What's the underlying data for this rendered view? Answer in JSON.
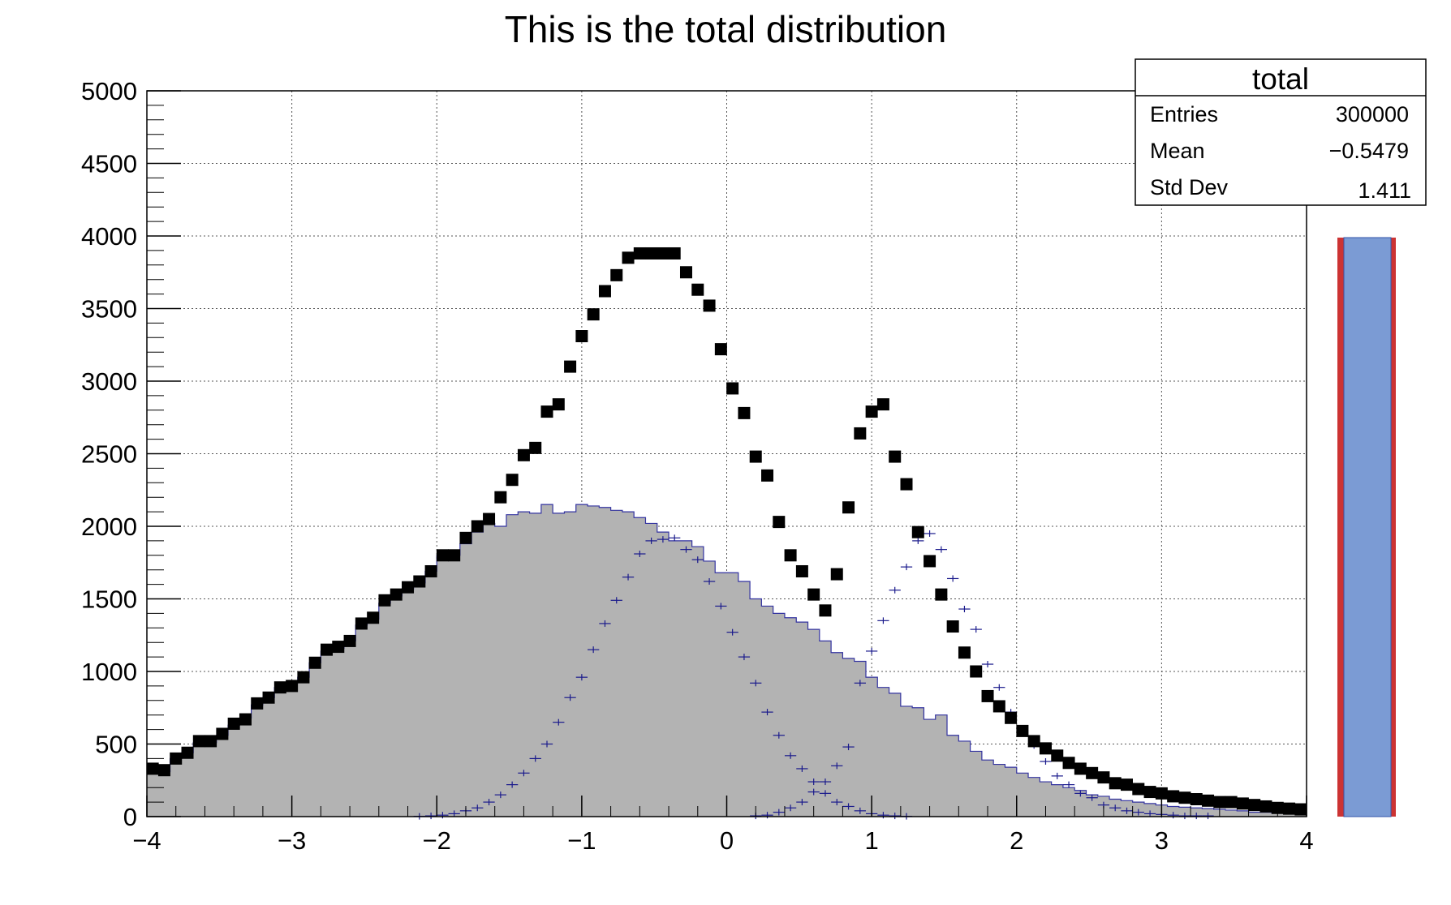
{
  "chart_data": {
    "type": "bar",
    "title": "This is the total distribution",
    "xlabel": "",
    "ylabel": "",
    "xlim": [
      -4,
      4
    ],
    "ylim": [
      0,
      5000
    ],
    "x_ticks": [
      "−4",
      "−3",
      "−2",
      "−1",
      "0",
      "1",
      "2",
      "3",
      "4"
    ],
    "y_ticks": [
      "0",
      "500",
      "1000",
      "1500",
      "2000",
      "2500",
      "3000",
      "3500",
      "4000",
      "4500",
      "5000"
    ],
    "grid": true,
    "bin_edges": [
      -4.0,
      -3.92,
      -3.84,
      -3.76,
      -3.68,
      -3.6,
      -3.52,
      -3.44,
      -3.36,
      -3.28,
      -3.2,
      -3.12,
      -3.04,
      -2.96,
      -2.88,
      -2.8,
      -2.72,
      -2.64,
      -2.56,
      -2.48,
      -2.4,
      -2.32,
      -2.24,
      -2.16,
      -2.08,
      -2.0,
      -1.92,
      -1.84,
      -1.76,
      -1.68,
      -1.6,
      -1.52,
      -1.44,
      -1.36,
      -1.28,
      -1.2,
      -1.12,
      -1.04,
      -0.96,
      -0.88,
      -0.8,
      -0.72,
      -0.64,
      -0.56,
      -0.48,
      -0.4,
      -0.32,
      -0.24,
      -0.16,
      -0.08,
      0.0,
      0.08,
      0.16,
      0.24,
      0.32,
      0.4,
      0.48,
      0.56,
      0.64,
      0.72,
      0.8,
      0.88,
      0.96,
      1.04,
      1.12,
      1.2,
      1.28,
      1.36,
      1.44,
      1.52,
      1.6,
      1.68,
      1.76,
      1.84,
      1.92,
      2.0,
      2.08,
      2.16,
      2.24,
      2.32,
      2.4,
      2.48,
      2.56,
      2.64,
      2.72,
      2.8,
      2.88,
      2.96,
      3.04,
      3.12,
      3.2,
      3.28,
      3.36,
      3.44,
      3.52,
      3.6,
      3.68,
      3.76,
      3.84,
      3.92,
      4.0
    ],
    "series": [
      {
        "style": "filled-histogram",
        "fill_color": "#b3b3b3",
        "line_color": "#3333a0",
        "values": [
          320,
          310,
          400,
          440,
          510,
          510,
          560,
          630,
          680,
          770,
          820,
          890,
          920,
          960,
          1060,
          1140,
          1160,
          1210,
          1320,
          1360,
          1470,
          1520,
          1570,
          1610,
          1690,
          1800,
          1800,
          1880,
          1960,
          2020,
          2000,
          2080,
          2100,
          2090,
          2150,
          2090,
          2100,
          2150,
          2140,
          2130,
          2110,
          2100,
          2060,
          2020,
          1960,
          1900,
          1900,
          1860,
          1760,
          1680,
          1680,
          1620,
          1500,
          1450,
          1400,
          1370,
          1340,
          1290,
          1210,
          1130,
          1090,
          1070,
          960,
          890,
          850,
          760,
          750,
          670,
          700,
          560,
          520,
          450,
          390,
          360,
          340,
          300,
          270,
          240,
          220,
          200,
          180,
          150,
          140,
          120,
          110,
          100,
          90,
          80,
          70,
          65,
          60,
          55,
          50,
          45,
          40,
          30,
          30,
          25,
          20,
          18
        ]
      },
      {
        "style": "markers",
        "marker": "filled-square",
        "color": "#000000",
        "values": [
          330,
          320,
          400,
          440,
          520,
          520,
          570,
          640,
          670,
          780,
          820,
          890,
          900,
          960,
          1060,
          1150,
          1170,
          1210,
          1330,
          1370,
          1490,
          1530,
          1580,
          1620,
          1690,
          1800,
          1800,
          1920,
          2000,
          2050,
          2200,
          2320,
          2490,
          2540,
          2790,
          2840,
          3100,
          3310,
          3460,
          3620,
          3730,
          3850,
          3880,
          3880,
          3880,
          3880,
          3750,
          3630,
          3520,
          3220,
          2950,
          2780,
          2480,
          2350,
          2030,
          1800,
          1690,
          1530,
          1420,
          1670,
          2130,
          2640,
          2790,
          2840,
          2480,
          2290,
          1960,
          1760,
          1530,
          1310,
          1130,
          1000,
          830,
          760,
          680,
          590,
          520,
          470,
          420,
          370,
          330,
          300,
          270,
          230,
          220,
          190,
          170,
          160,
          140,
          130,
          120,
          110,
          100,
          100,
          90,
          80,
          70,
          60,
          55,
          50
        ]
      },
      {
        "style": "error-crosses",
        "color": "#1a1a8c",
        "values": [
          0,
          0,
          0,
          0,
          0,
          0,
          0,
          0,
          0,
          0,
          0,
          0,
          0,
          0,
          0,
          0,
          0,
          0,
          0,
          0,
          0,
          0,
          0,
          2,
          5,
          10,
          20,
          40,
          60,
          100,
          150,
          220,
          300,
          400,
          500,
          650,
          820,
          960,
          1150,
          1330,
          1490,
          1650,
          1810,
          1900,
          1910,
          1920,
          1840,
          1770,
          1620,
          1450,
          1270,
          1100,
          920,
          720,
          560,
          420,
          330,
          240,
          160,
          100,
          70,
          40,
          20,
          10,
          5,
          2,
          0,
          0,
          0,
          0,
          0,
          0,
          0,
          0,
          0,
          0,
          0,
          0,
          0,
          0,
          0,
          0,
          0,
          0,
          0,
          0,
          0,
          0,
          0,
          0,
          0,
          0,
          0,
          0,
          0,
          0,
          0,
          0,
          0,
          0
        ]
      },
      {
        "style": "error-crosses",
        "color": "#1a1a8c",
        "values": [
          0,
          0,
          0,
          0,
          0,
          0,
          0,
          0,
          0,
          0,
          0,
          0,
          0,
          0,
          0,
          0,
          0,
          0,
          0,
          0,
          0,
          0,
          0,
          0,
          0,
          0,
          0,
          0,
          0,
          0,
          0,
          0,
          0,
          0,
          0,
          0,
          0,
          0,
          0,
          0,
          0,
          0,
          0,
          0,
          0,
          0,
          0,
          0,
          0,
          0,
          0,
          0,
          5,
          10,
          30,
          60,
          100,
          170,
          240,
          350,
          480,
          920,
          1140,
          1350,
          1560,
          1720,
          1900,
          1950,
          1840,
          1640,
          1430,
          1290,
          1050,
          890,
          720,
          590,
          490,
          380,
          280,
          220,
          160,
          130,
          80,
          60,
          40,
          30,
          20,
          15,
          10,
          5,
          5,
          5,
          0,
          0,
          0,
          0,
          0,
          0,
          0,
          0
        ]
      }
    ]
  },
  "stats_box": {
    "title": "total",
    "rows": [
      {
        "label": "Entries",
        "value": "300000"
      },
      {
        "label": "Mean",
        "value": "−0.5479"
      },
      {
        "label": "Std Dev",
        "value": "1.411"
      }
    ]
  },
  "colors": {
    "frame": "#000000",
    "grid": "#555555",
    "side_bar_fill": "#7b9bd4",
    "side_bar_border": "#cc3333"
  }
}
